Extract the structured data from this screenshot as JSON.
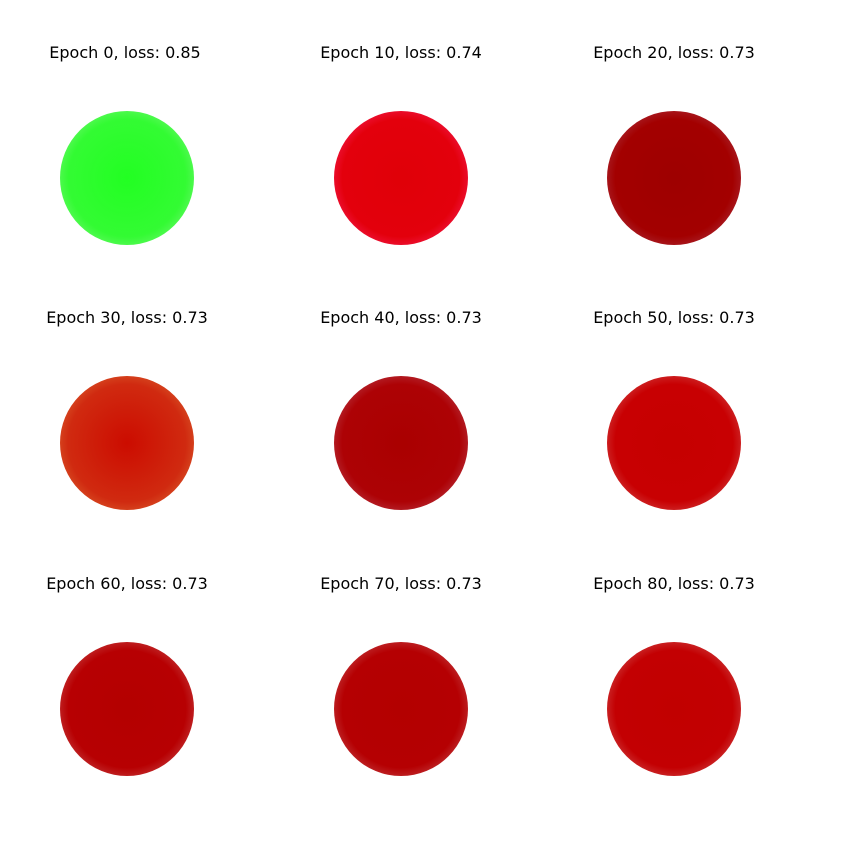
{
  "panels": [
    {
      "title": "Epoch 0, loss: 0.85",
      "core_color": "#22ff22",
      "mid_color": "#33fb33",
      "edge_color": "#8ef58e"
    },
    {
      "title": "Epoch 10, loss: 0.74",
      "core_color": "#e00008",
      "mid_color": "#e3000c",
      "edge_color": "#ff2d7a"
    },
    {
      "title": "Epoch 20, loss: 0.73",
      "core_color": "#9e0000",
      "mid_color": "#a30000",
      "edge_color": "#b04a5e"
    },
    {
      "title": "Epoch 30, loss: 0.73",
      "core_color": "#cc0c00",
      "mid_color": "#d02a10",
      "edge_color": "#e0783c"
    },
    {
      "title": "Epoch 40, loss: 0.73",
      "core_color": "#aa0000",
      "mid_color": "#ad0205",
      "edge_color": "#c0596c"
    },
    {
      "title": "Epoch 50, loss: 0.73",
      "core_color": "#c60000",
      "mid_color": "#c80002",
      "edge_color": "#d86a6a"
    },
    {
      "title": "Epoch 60, loss: 0.73",
      "core_color": "#b40000",
      "mid_color": "#b70002",
      "edge_color": "#d06b6b"
    },
    {
      "title": "Epoch 70, loss: 0.73",
      "core_color": "#b30000",
      "mid_color": "#b50002",
      "edge_color": "#ce6a6e"
    },
    {
      "title": "Epoch 80, loss: 0.73",
      "core_color": "#c10000",
      "mid_color": "#c30002",
      "edge_color": "#d87272"
    }
  ]
}
